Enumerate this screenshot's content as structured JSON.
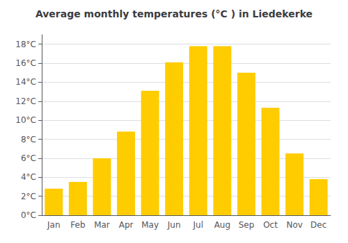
{
  "chart_data": {
    "type": "bar",
    "title": "Average monthly temperatures (°C ) in Liedekerke",
    "categories": [
      "Jan",
      "Feb",
      "Mar",
      "Apr",
      "May",
      "Jun",
      "Jul",
      "Aug",
      "Sep",
      "Oct",
      "Nov",
      "Dec"
    ],
    "values": [
      2.8,
      3.5,
      6.0,
      8.8,
      13.1,
      16.1,
      17.8,
      17.8,
      15.0,
      11.3,
      6.5,
      3.8
    ],
    "color": "#FFCC00",
    "ylim": [
      0,
      19
    ],
    "yticks": [
      {
        "value": 0,
        "label": "0°C"
      },
      {
        "value": 2,
        "label": "2°C"
      },
      {
        "value": 4,
        "label": "4°C"
      },
      {
        "value": 6,
        "label": "6°C"
      },
      {
        "value": 8,
        "label": "8°C"
      },
      {
        "value": 10,
        "label": "10°C"
      },
      {
        "value": 12,
        "label": "12°C"
      },
      {
        "value": 14,
        "label": "14°C"
      },
      {
        "value": 16,
        "label": "16°C"
      },
      {
        "value": 18,
        "label": "18°C"
      }
    ],
    "grid": true
  }
}
